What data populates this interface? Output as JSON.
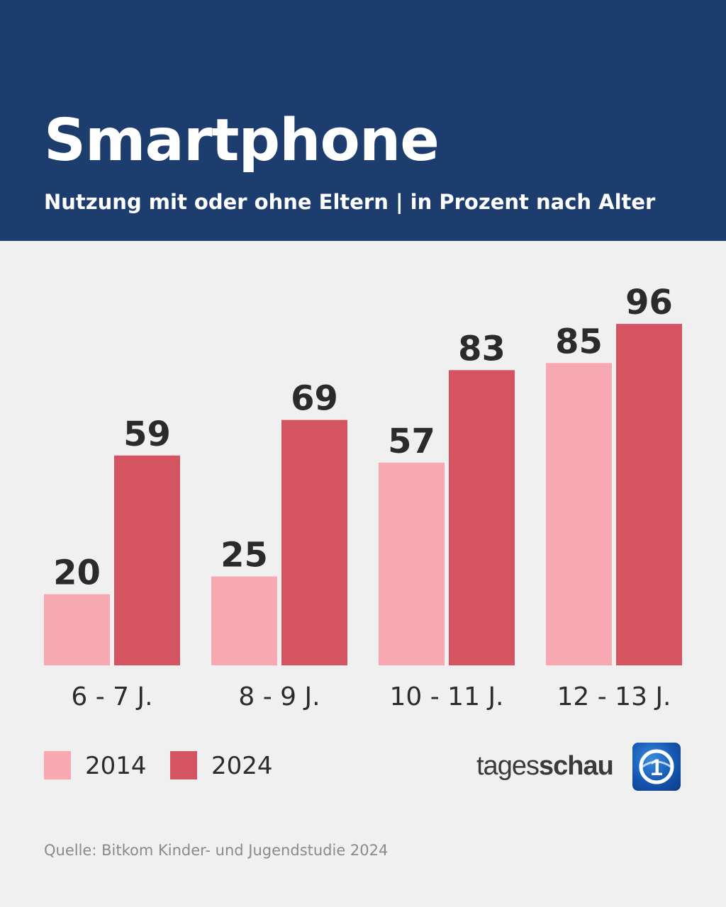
{
  "header": {
    "title": "Smartphone",
    "subtitle": "Nutzung mit oder ohne Eltern | in Prozent nach Alter"
  },
  "chart_data": {
    "type": "bar",
    "title": "Smartphone",
    "subtitle": "Nutzung mit oder ohne Eltern | in Prozent nach Alter",
    "categories": [
      "6 - 7 J.",
      "8 - 9 J.",
      "10 - 11 J.",
      "12 - 13 J."
    ],
    "series": [
      {
        "name": "2014",
        "color": "#f8a8b0",
        "values": [
          20,
          25,
          57,
          85
        ]
      },
      {
        "name": "2024",
        "color": "#d45462",
        "values": [
          59,
          69,
          83,
          96
        ]
      }
    ],
    "ylim": [
      0,
      100
    ],
    "xlabel": "",
    "ylabel": "",
    "grid": false,
    "legend": "bottom-left"
  },
  "legend": {
    "items": [
      {
        "label": "2014",
        "color": "#f8a8b0"
      },
      {
        "label": "2024",
        "color": "#d45462"
      }
    ]
  },
  "brand": {
    "name_light": "tages",
    "name_bold": "schau",
    "logo_icon": "ard-one-logo-icon",
    "logo_glyph": "1"
  },
  "source": "Quelle: Bitkom Kinder- und Jugendstudie 2024"
}
